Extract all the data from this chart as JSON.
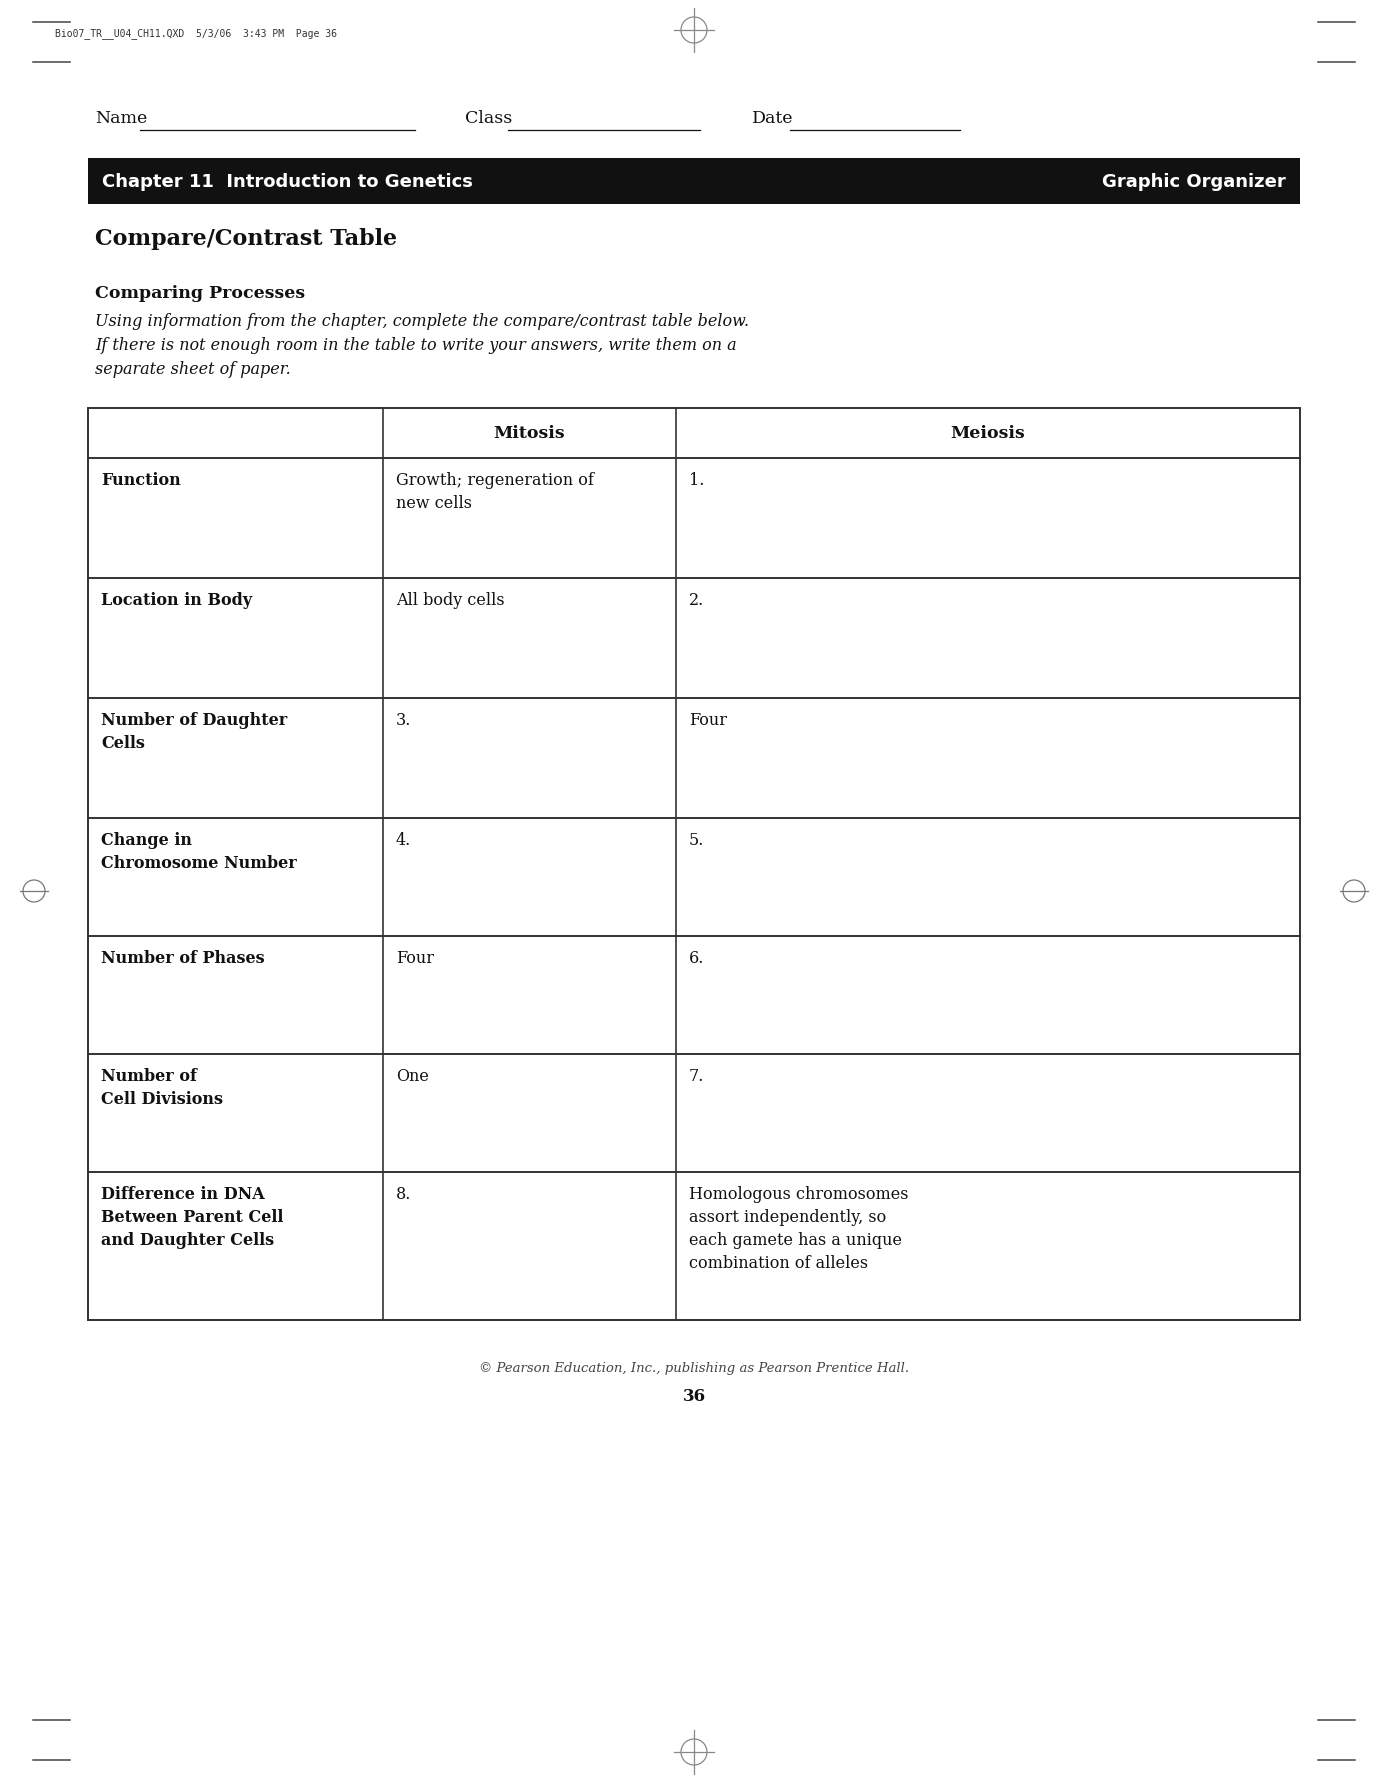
{
  "page_bg": "#ffffff",
  "header_text": "Bio07_TR__U04_CH11.QXD  5/3/06  3:43 PM  Page 36",
  "name_label": "Name",
  "class_label": "Class",
  "date_label": "Date",
  "chapter_bar_text": "Chapter 11  Introduction to Genetics",
  "chapter_bar_right": "Graphic Organizer",
  "chapter_bar_bg": "#111111",
  "chapter_bar_text_color": "#ffffff",
  "title": "Compare/Contrast Table",
  "subtitle": "Comparing Processes",
  "instructions": "Using information from the chapter, complete the compare/contrast table below.\nIf there is not enough room in the table to write your answers, write them on a\nseparate sheet of paper.",
  "table_col_headers": [
    "",
    "Mitosis",
    "Meiosis"
  ],
  "table_rows": [
    {
      "row_label": "Function",
      "mitosis_text": "Growth; regeneration of\nnew cells",
      "meiosis_text": "1."
    },
    {
      "row_label": "Location in Body",
      "mitosis_text": "All body cells",
      "meiosis_text": "2."
    },
    {
      "row_label": "Number of Daughter\nCells",
      "mitosis_text": "3.",
      "meiosis_text": "Four"
    },
    {
      "row_label": "Change in\nChromosome Number",
      "mitosis_text": "4.",
      "meiosis_text": "5."
    },
    {
      "row_label": "Number of Phases",
      "mitosis_text": "Four",
      "meiosis_text": "6."
    },
    {
      "row_label": "Number of\nCell Divisions",
      "mitosis_text": "One",
      "meiosis_text": "7."
    },
    {
      "row_label": "Difference in DNA\nBetween Parent Cell\nand Daughter Cells",
      "mitosis_text": "8.",
      "meiosis_text": "Homologous chromosomes\nassort independently, so\neach gamete has a unique\ncombination of alleles"
    }
  ],
  "footer_text": "© Pearson Education, Inc., publishing as Pearson Prentice Hall.",
  "footer_page": "36"
}
